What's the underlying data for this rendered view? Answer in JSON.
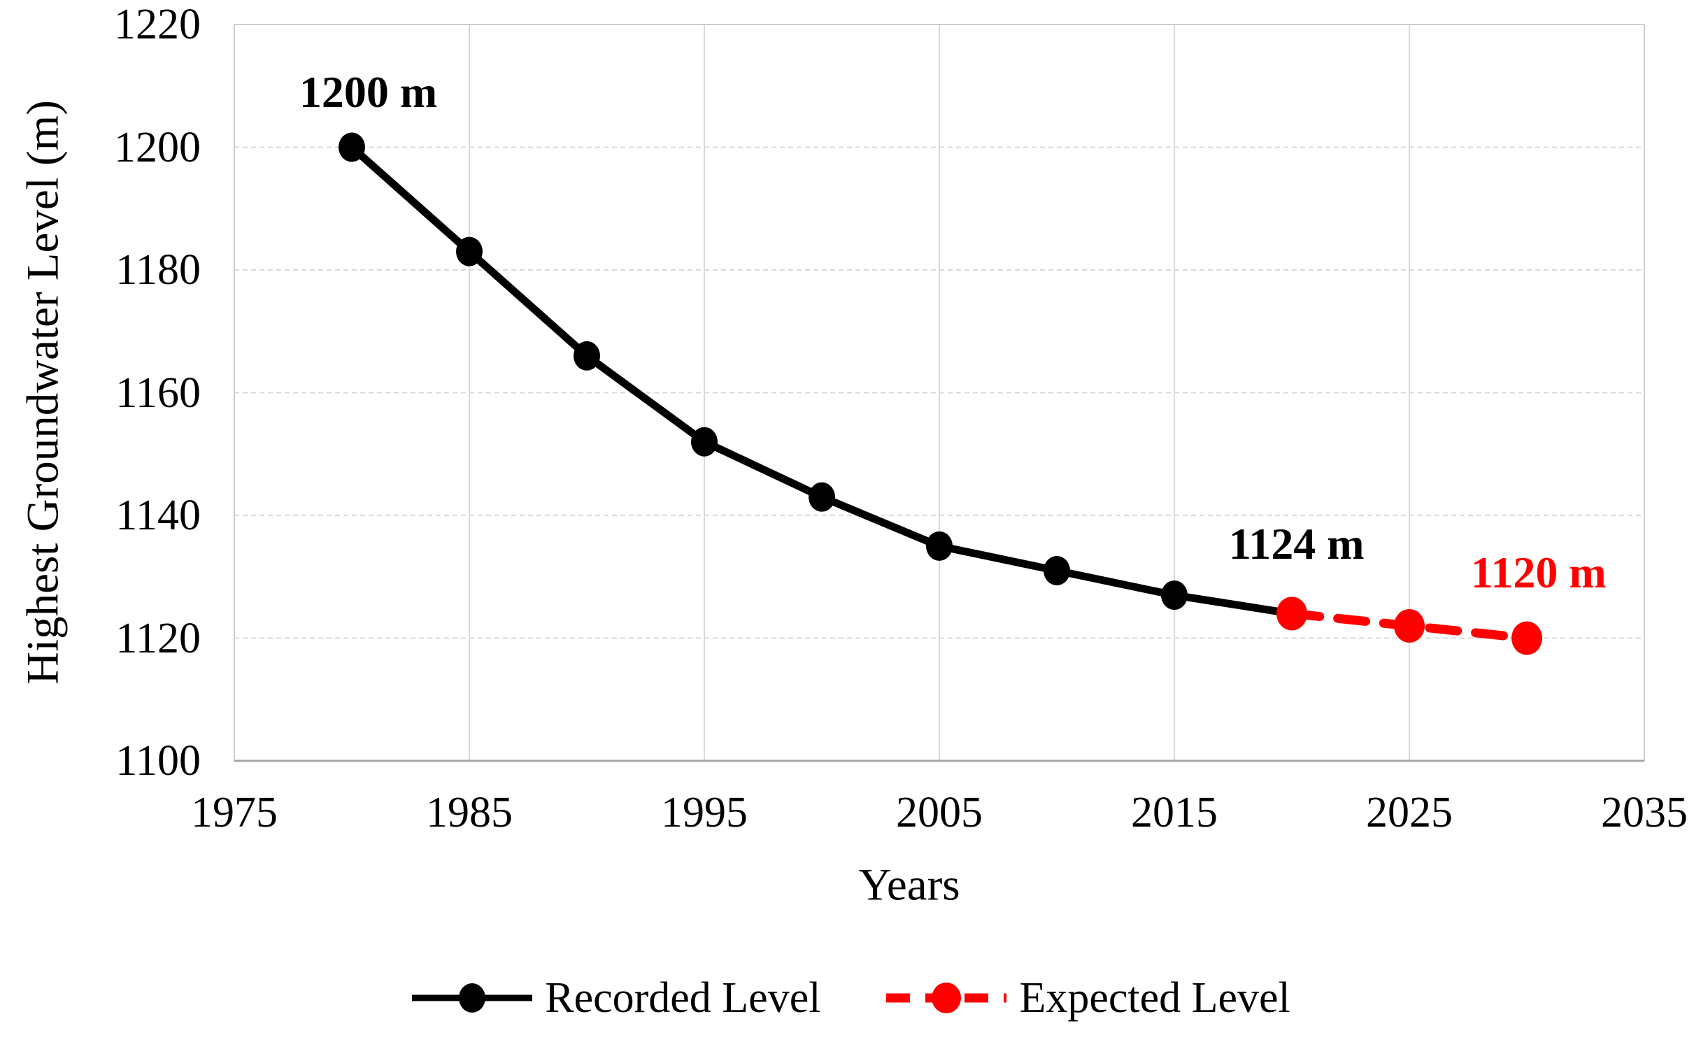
{
  "chart_data": {
    "type": "line",
    "title": "",
    "xlabel": "Years",
    "ylabel": "Highest Groundwater Level (m)",
    "xlim": [
      1975,
      2035
    ],
    "ylim": [
      1100,
      1220
    ],
    "x_ticks": [
      1975,
      1985,
      1995,
      2005,
      2015,
      2025,
      2035
    ],
    "y_ticks": [
      1100,
      1120,
      1140,
      1160,
      1180,
      1200,
      1220
    ],
    "grid": true,
    "grid_color": "#d9d9d9",
    "legend_position": "bottom",
    "series": [
      {
        "name": "Recorded Level",
        "color": "#000000",
        "dash": "solid",
        "width": 11,
        "marker_size": 19,
        "line": {
          "x": [
            1980,
            1985,
            1990,
            1995,
            2000,
            2005,
            2010,
            2015,
            2020
          ],
          "y": [
            1200,
            1183,
            1166,
            1152,
            1143,
            1135,
            1131,
            1127,
            1124
          ]
        },
        "markers": {
          "x": [
            1980,
            1985,
            1990,
            1995,
            2000,
            2005,
            2010,
            2015
          ],
          "y": [
            1200,
            1183,
            1166,
            1152,
            1143,
            1135,
            1131,
            1127
          ]
        }
      },
      {
        "name": "Expected Level",
        "color": "#ff0000",
        "dash": "dashed",
        "width": 13,
        "marker_size": 22,
        "line": {
          "x": [
            2020,
            2025,
            2030
          ],
          "y": [
            1124,
            1122,
            1120
          ]
        },
        "markers": {
          "x": [
            2020,
            2025,
            2030
          ],
          "y": [
            1124,
            1122,
            1120
          ]
        }
      }
    ],
    "annotations": [
      {
        "text": "1200 m",
        "x": 1980.7,
        "y": 1209.0,
        "color": "#000000"
      },
      {
        "text": "1124 m",
        "x": 2020.2,
        "y": 1135.3,
        "color": "#000000"
      },
      {
        "text": "1120 m",
        "x": 2030.5,
        "y": 1130.7,
        "color": "#ff0000"
      }
    ]
  }
}
